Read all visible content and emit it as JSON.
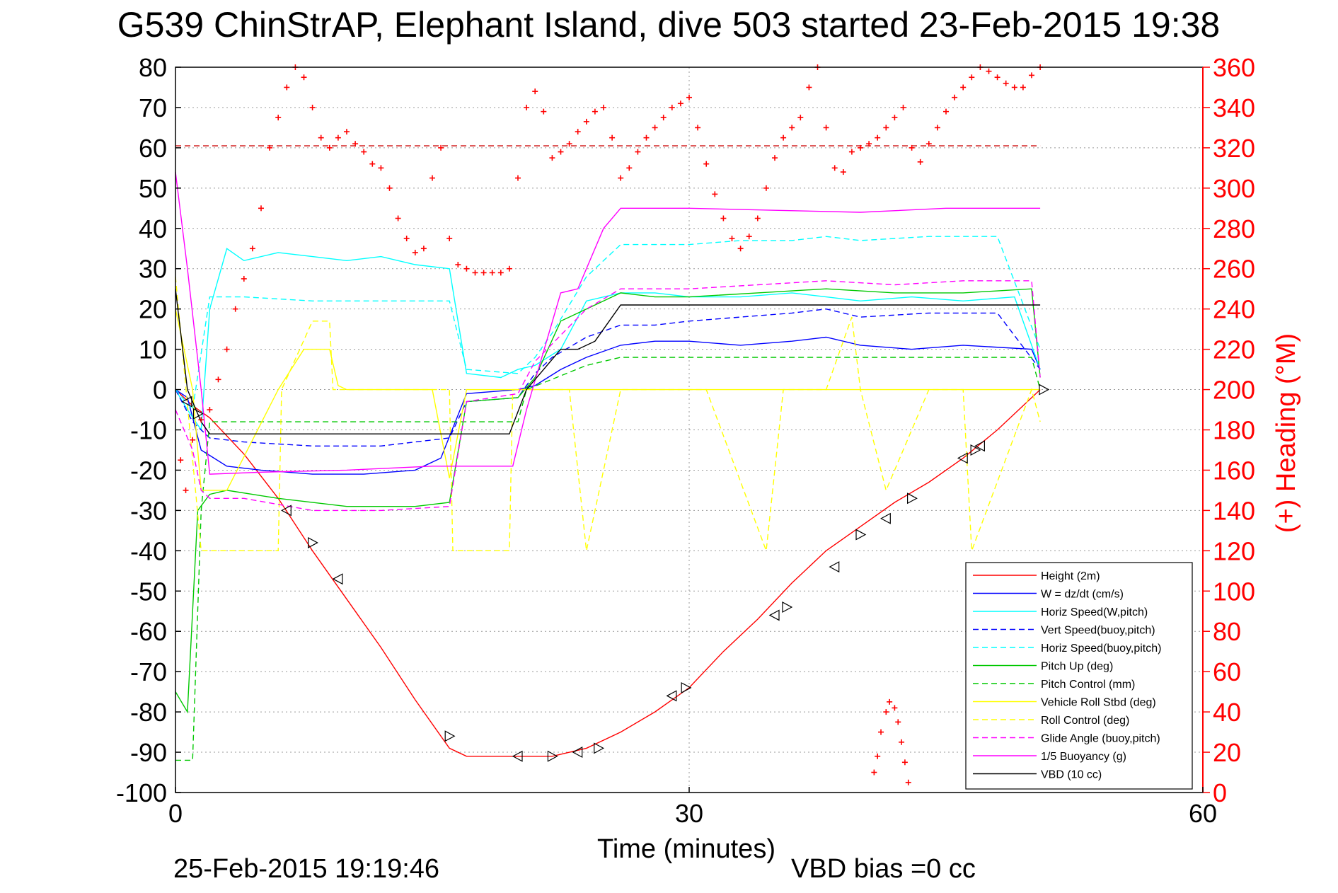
{
  "chart_data": {
    "type": "line",
    "title": "G539 ChinStrAP, Elephant Island, dive 503 started 23-Feb-2015 19:38",
    "xlabel": "Time (minutes)",
    "ylabel_right": "(+) Heading (°M)",
    "footer_date": "25-Feb-2015 19:19:46",
    "footer_bias": "VBD bias =0 cc",
    "xlim": [
      0,
      60
    ],
    "ylim": [
      -100,
      80
    ],
    "ylim_right": [
      0,
      360
    ],
    "x_ticks": [
      "0",
      "30",
      "60"
    ],
    "y_ticks": [
      "80",
      "70",
      "60",
      "50",
      "40",
      "30",
      "20",
      "10",
      "0",
      "-10",
      "-20",
      "-30",
      "-40",
      "-50",
      "-60",
      "-70",
      "-80",
      "-90",
      "-100"
    ],
    "y_ticks_right": [
      "360",
      "340",
      "320",
      "300",
      "280",
      "260",
      "240",
      "220",
      "200",
      "180",
      "160",
      "140",
      "120",
      "100",
      "80",
      "60",
      "40",
      "20",
      "0"
    ],
    "grid": true,
    "legend_position": "bottom-right",
    "heading_ref": 321,
    "series": [
      {
        "name": "Height (2m)",
        "color": "#ff0000",
        "dash": "solid",
        "x": [
          0,
          1,
          2,
          4,
          6,
          8,
          10,
          12,
          14,
          16,
          17,
          19,
          20,
          22,
          24,
          26,
          28,
          30,
          32,
          34,
          36,
          38,
          40,
          42,
          44,
          46,
          48,
          50.5
        ],
        "y": [
          0,
          -4,
          -7,
          -16,
          -27,
          -40,
          -52,
          -64,
          -77,
          -89,
          -91,
          -91,
          -91,
          -91,
          -89,
          -85,
          -80,
          -74,
          -65,
          -57,
          -48,
          -40,
          -34,
          -28,
          -23,
          -17,
          -10,
          0
        ]
      },
      {
        "name": "W = dz/dt (cm/s)",
        "color": "#0000ff",
        "dash": "solid",
        "x": [
          0,
          0.7,
          1.5,
          3,
          5,
          8,
          11,
          14,
          15.5,
          17,
          20,
          21,
          22.5,
          24,
          26,
          28,
          30,
          33,
          36,
          38,
          40,
          43,
          46,
          50,
          50.5
        ],
        "y": [
          0,
          -2,
          -15,
          -19,
          -20,
          -21,
          -21,
          -20,
          -17,
          -1,
          0,
          1,
          5,
          8,
          11,
          12,
          12,
          11,
          12,
          13,
          11,
          10,
          11,
          10,
          5
        ]
      },
      {
        "name": "Horiz Speed(W,pitch)",
        "color": "#00ffff",
        "dash": "solid",
        "x": [
          0,
          0.7,
          1.5,
          2,
          3,
          4,
          6,
          8,
          10,
          12,
          14,
          16,
          17,
          19,
          20,
          21,
          22.5,
          24,
          26,
          28,
          30,
          33,
          36,
          38,
          40,
          43,
          46,
          49,
          50.5
        ],
        "y": [
          0,
          -5,
          -10,
          20,
          35,
          32,
          34,
          33,
          32,
          33,
          31,
          30,
          4,
          3,
          5,
          6,
          10,
          22,
          24,
          24,
          23,
          23,
          24,
          23,
          22,
          23,
          22,
          23,
          5
        ]
      },
      {
        "name": "Vert Speed(buoy,pitch)",
        "color": "#0000ff",
        "dash": "dashed",
        "x": [
          0,
          1,
          2,
          4,
          8,
          12,
          16,
          17,
          20,
          21,
          22,
          24,
          26,
          28,
          30,
          33,
          36,
          38,
          40,
          44,
          48,
          50.5
        ],
        "y": [
          0,
          -8,
          -12,
          -13,
          -14,
          -14,
          -12,
          -3,
          -2,
          4,
          8,
          13,
          16,
          16,
          17,
          18,
          19,
          20,
          18,
          19,
          19,
          5
        ]
      },
      {
        "name": "Horiz Speed(buoy,pitch)",
        "color": "#00ffff",
        "dash": "dashed",
        "x": [
          0,
          1,
          2,
          4,
          8,
          12,
          16,
          17,
          20,
          21,
          22,
          24,
          26,
          28,
          30,
          33,
          36,
          38,
          40,
          44,
          48,
          50.5
        ],
        "y": [
          0,
          -5,
          23,
          23,
          22,
          22,
          22,
          5,
          4,
          8,
          14,
          28,
          36,
          36,
          36,
          37,
          37,
          38,
          37,
          38,
          38,
          10
        ]
      },
      {
        "name": "Pitch Up (deg)",
        "color": "#00c800",
        "dash": "solid",
        "x": [
          0,
          0.7,
          1.3,
          2,
          3,
          6,
          10,
          14,
          16,
          17,
          20,
          21,
          22.5,
          24,
          26,
          28,
          30,
          34,
          38,
          42,
          46,
          50,
          50.5
        ],
        "y": [
          -75,
          -80,
          -30,
          -26,
          -25,
          -27,
          -29,
          -29,
          -28,
          -3,
          -2,
          3,
          17,
          20,
          24,
          23,
          23,
          24,
          25,
          24,
          24,
          25,
          3
        ]
      },
      {
        "name": "Pitch Control (mm)",
        "color": "#00c800",
        "dash": "dashed",
        "x": [
          0,
          1,
          1.5,
          2,
          4,
          10,
          17,
          20,
          20.5,
          24,
          26,
          30,
          40,
          50,
          50.5
        ],
        "y": [
          -92,
          -92,
          -30,
          -8,
          -8,
          -8,
          -8,
          -8,
          0,
          6,
          8,
          8,
          8,
          8,
          0
        ]
      },
      {
        "name": "Vehicle Roll Stbd (deg)",
        "color": "#ffff00",
        "dash": "solid",
        "x": [
          0,
          0.5,
          1,
          1.5,
          3,
          6,
          7.5,
          8,
          9,
          9.5,
          10,
          15,
          16,
          17,
          25,
          35,
          40,
          42,
          48,
          50.5
        ],
        "y": [
          20,
          10,
          0,
          -25,
          -25,
          0,
          10,
          10,
          10,
          1,
          0,
          0,
          -22,
          0,
          0,
          0,
          0,
          0,
          0,
          0
        ]
      },
      {
        "name": "Roll Control (deg)",
        "color": "#ffff00",
        "dash": "dashed",
        "x": [
          0,
          1.5,
          2,
          6,
          6.2,
          8,
          9,
          9.2,
          16,
          16.2,
          19.5,
          19.7,
          23,
          24,
          26,
          29,
          31,
          34.5,
          35.5,
          38,
          39.5,
          40,
          41.5,
          44,
          46,
          46.5,
          50,
          50.5
        ],
        "y": [
          28,
          -40,
          -40,
          -40,
          0,
          17,
          17,
          0,
          0,
          -40,
          -40,
          0,
          0,
          -40,
          0,
          0,
          0,
          -40,
          0,
          0,
          18,
          0,
          -25,
          0,
          0,
          -40,
          0,
          -8
        ]
      },
      {
        "name": "Glide Angle (buoy,pitch)",
        "color": "#ff00ff",
        "dash": "dashed",
        "x": [
          0,
          1,
          1.5,
          2,
          4,
          8,
          12,
          16,
          17,
          20,
          21,
          24,
          26,
          30,
          34,
          38,
          42,
          46,
          50,
          50.5
        ],
        "y": [
          -5,
          -15,
          -25,
          -27,
          -27,
          -30,
          -30,
          -29,
          -3,
          -1,
          7,
          20,
          25,
          25,
          26,
          27,
          26,
          27,
          27,
          3
        ]
      },
      {
        "name": "1/5 Buoyancy (g)",
        "color": "#ff00ff",
        "dash": "solid",
        "x": [
          0,
          0.7,
          1.5,
          2,
          5,
          10,
          15,
          17,
          19.7,
          20.5,
          22.5,
          23.5,
          25,
          26,
          30,
          35,
          40,
          45,
          50.5
        ],
        "y": [
          54,
          30,
          0,
          -21,
          -20.5,
          -20,
          -19,
          -19,
          -19,
          -5,
          24,
          25,
          40,
          45,
          45,
          44.5,
          44,
          45,
          45
        ]
      },
      {
        "name": "VBD (10 cc)",
        "color": "#000000",
        "dash": "solid",
        "x": [
          0,
          0.7,
          1.5,
          2,
          5,
          10,
          15,
          17,
          19.5,
          20.5,
          22.5,
          23.5,
          24.5,
          26,
          30,
          40,
          50.5
        ],
        "y": [
          25,
          0,
          -8,
          -11,
          -11,
          -11,
          -11,
          -11,
          -11,
          0,
          10,
          10,
          12,
          21,
          21,
          21,
          21
        ]
      }
    ],
    "heading_points": {
      "name": "Heading",
      "color": "#ff0000",
      "marker": "+",
      "x": [
        0.3,
        0.6,
        1.0,
        1.5,
        2.0,
        2.5,
        3.0,
        3.5,
        4.0,
        4.5,
        5.0,
        5.5,
        6.0,
        6.5,
        7.0,
        7.5,
        8.0,
        8.5,
        9.0,
        9.5,
        10.0,
        10.5,
        11.0,
        11.5,
        12.0,
        12.5,
        13.0,
        13.5,
        14.0,
        14.5,
        15.0,
        15.5,
        16.0,
        16.5,
        17.0,
        17.5,
        18.0,
        18.5,
        19.0,
        19.5,
        20.0,
        20.5,
        21.0,
        21.5,
        22.0,
        22.5,
        23.0,
        23.5,
        24.0,
        24.5,
        25.0,
        25.5,
        26.0,
        26.5,
        27.0,
        27.5,
        28.0,
        28.5,
        29.0,
        29.5,
        30.0,
        30.5,
        31.0,
        31.5,
        32.0,
        32.5,
        33.0,
        33.5,
        34.0,
        34.5,
        35.0,
        35.5,
        36.0,
        36.5,
        37.0,
        37.5,
        38.0,
        38.5,
        39.0,
        39.5,
        40.0,
        40.5,
        41.0,
        41.5,
        42.0,
        42.5,
        43.0,
        43.5,
        44.0,
        44.5,
        45.0,
        45.5,
        46.0,
        46.5,
        47.0,
        47.5,
        48.0,
        48.5,
        49.0,
        49.5,
        50.0,
        50.5
      ],
      "y": [
        165,
        150,
        175,
        185,
        190,
        205,
        220,
        240,
        255,
        270,
        290,
        320,
        335,
        350,
        360,
        355,
        340,
        325,
        320,
        325,
        328,
        322,
        318,
        312,
        310,
        300,
        285,
        275,
        268,
        270,
        305,
        320,
        275,
        262,
        260,
        258,
        258,
        258,
        258,
        260,
        305,
        340,
        348,
        338,
        315,
        318,
        322,
        328,
        333,
        338,
        340,
        325,
        305,
        310,
        318,
        325,
        330,
        335,
        340,
        342,
        345,
        330,
        312,
        297,
        285,
        275,
        270,
        276,
        285,
        300,
        315,
        325,
        330,
        335,
        350,
        360,
        330,
        310,
        308,
        318,
        320,
        322,
        325,
        330,
        335,
        340,
        320,
        313,
        322,
        330,
        338,
        345,
        350,
        355,
        360,
        358,
        355,
        352,
        350,
        350,
        356,
        362
      ]
    },
    "heading_cluster": {
      "x": [
        40.8,
        41.0,
        41.2,
        41.5,
        41.7,
        42.0,
        42.2,
        42.4,
        42.6,
        42.8
      ],
      "y": [
        10,
        18,
        30,
        40,
        45,
        42,
        35,
        25,
        15,
        5
      ]
    },
    "triangle_markers": {
      "x": [
        0.7,
        1.3,
        6.5,
        8,
        9.5,
        16,
        20,
        22,
        23.5,
        24.7,
        29,
        29.8,
        35,
        35.7,
        38.5,
        40,
        41.5,
        43,
        46,
        46.7,
        47,
        50.7
      ],
      "y": [
        -3,
        -6,
        -30,
        -38,
        -47,
        -86,
        -91,
        -91,
        -90,
        -89,
        -76,
        -74,
        -56,
        -54,
        -44,
        -36,
        -32,
        -27,
        -17,
        -15,
        -14,
        0
      ]
    }
  },
  "legend": {
    "items": [
      {
        "label": "Height (2m)",
        "color": "#ff0000",
        "dash": "solid"
      },
      {
        "label": "W = dz/dt (cm/s)",
        "color": "#0000ff",
        "dash": "solid"
      },
      {
        "label": "Horiz Speed(W,pitch)",
        "color": "#00ffff",
        "dash": "solid"
      },
      {
        "label": "Vert Speed(buoy,pitch)",
        "color": "#0000ff",
        "dash": "dashed"
      },
      {
        "label": "Horiz Speed(buoy,pitch)",
        "color": "#00ffff",
        "dash": "dashed"
      },
      {
        "label": "Pitch Up (deg)",
        "color": "#00c800",
        "dash": "solid"
      },
      {
        "label": "Pitch Control (mm)",
        "color": "#00c800",
        "dash": "dashed"
      },
      {
        "label": "Vehicle Roll Stbd (deg)",
        "color": "#ffff00",
        "dash": "solid"
      },
      {
        "label": "Roll Control (deg)",
        "color": "#ffff00",
        "dash": "dashed"
      },
      {
        "label": "Glide Angle (buoy,pitch)",
        "color": "#ff00ff",
        "dash": "dashed"
      },
      {
        "label": "1/5 Buoyancy (g)",
        "color": "#ff00ff",
        "dash": "solid"
      },
      {
        "label": "VBD (10 cc)",
        "color": "#000000",
        "dash": "solid"
      }
    ]
  },
  "colors": {
    "axis_left": "#000000",
    "axis_right": "#ff0000",
    "grid": "#999999",
    "background": "#ffffff"
  }
}
